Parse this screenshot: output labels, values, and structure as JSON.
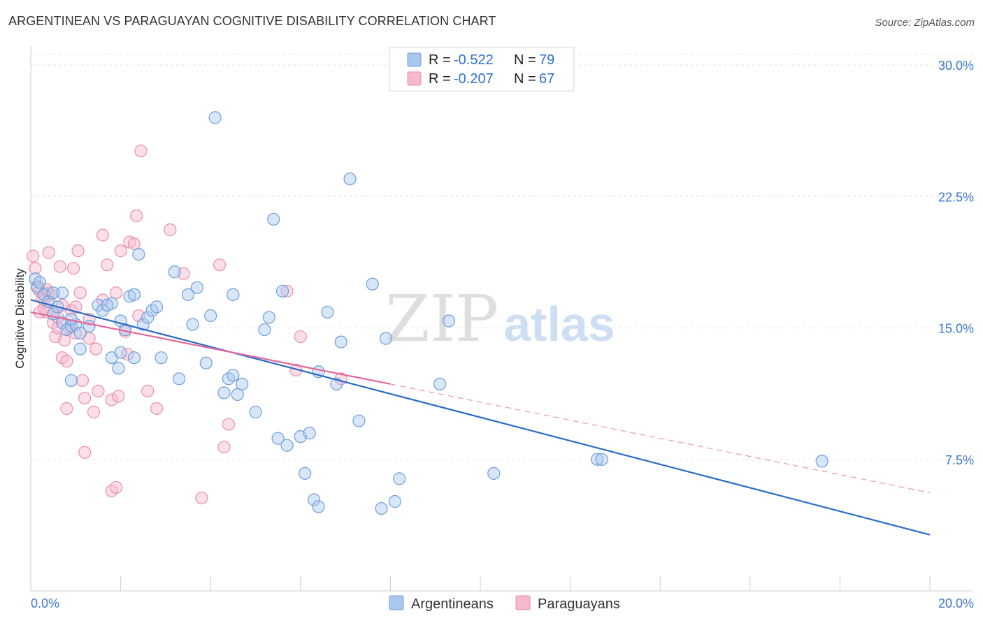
{
  "title": "ARGENTINEAN VS PARAGUAYAN COGNITIVE DISABILITY CORRELATION CHART",
  "source": "Source: ZipAtlas.com",
  "watermark": {
    "zip": "ZIP",
    "atlas": "atlas"
  },
  "colors": {
    "blue_fill": "#a9c8f0",
    "blue_stroke": "#6d9fd8",
    "blue_line": "#2a6cc8",
    "pink_fill": "#f6b9cc",
    "pink_stroke": "#e98fae",
    "pink_line": "#e4679a",
    "value_text": "#2f6fd0",
    "grid": "#e3e3e3"
  },
  "stats_legend": [
    {
      "series": "Argentineans",
      "r_label": "R =",
      "r_value": "-0.522",
      "n_label": "N =",
      "n_value": "79"
    },
    {
      "series": "Paraguayans",
      "r_label": "R =",
      "r_value": "-0.207",
      "n_label": "N =",
      "n_value": "67"
    }
  ],
  "chart_data": {
    "type": "scatter",
    "title": "ARGENTINEAN VS PARAGUAYAN COGNITIVE DISABILITY CORRELATION CHART",
    "xlabel": "",
    "ylabel": "Cognitive Disability",
    "xlim": [
      0,
      20
    ],
    "ylim": [
      0,
      30.6
    ],
    "x_tick_labels": [
      "0.0%",
      "20.0%"
    ],
    "y_ticks": [
      7.5,
      15.0,
      22.5,
      30.0
    ],
    "y_tick_labels": [
      "7.5%",
      "15.0%",
      "22.5%",
      "30.0%"
    ],
    "grid": "horizontal dashed",
    "legend_position": "bottom-center",
    "series": [
      {
        "name": "Argentineans",
        "color": "#a9c8f0",
        "trend": {
          "x": [
            0,
            20
          ],
          "y": [
            16.6,
            3.2
          ],
          "style": "solid"
        },
        "points": [
          [
            0.1,
            17.8
          ],
          [
            0.15,
            17.3
          ],
          [
            0.2,
            17.6
          ],
          [
            0.3,
            16.9
          ],
          [
            0.4,
            16.5
          ],
          [
            0.5,
            15.8
          ],
          [
            0.6,
            16.2
          ],
          [
            0.7,
            15.3
          ],
          [
            0.8,
            14.9
          ],
          [
            0.9,
            15.1
          ],
          [
            1.0,
            15.2
          ],
          [
            1.1,
            14.7
          ],
          [
            1.3,
            15.1
          ],
          [
            1.5,
            16.3
          ],
          [
            1.6,
            16.0
          ],
          [
            1.8,
            16.4
          ],
          [
            2.0,
            15.4
          ],
          [
            2.2,
            16.8
          ],
          [
            2.3,
            16.9
          ],
          [
            2.5,
            15.2
          ],
          [
            2.6,
            15.6
          ],
          [
            2.7,
            16.0
          ],
          [
            2.8,
            16.2
          ],
          [
            0.7,
            17.0
          ],
          [
            0.9,
            15.5
          ],
          [
            1.1,
            13.8
          ],
          [
            1.8,
            13.3
          ],
          [
            1.95,
            12.7
          ],
          [
            2.0,
            13.6
          ],
          [
            2.1,
            14.9
          ],
          [
            2.3,
            13.3
          ],
          [
            2.4,
            19.2
          ],
          [
            3.2,
            18.2
          ],
          [
            3.5,
            16.9
          ],
          [
            3.7,
            17.3
          ],
          [
            3.6,
            15.2
          ],
          [
            4.0,
            15.7
          ],
          [
            4.1,
            27.0
          ],
          [
            4.3,
            11.3
          ],
          [
            4.4,
            12.1
          ],
          [
            4.5,
            12.3
          ],
          [
            4.5,
            16.9
          ],
          [
            4.6,
            11.2
          ],
          [
            4.7,
            11.8
          ],
          [
            5.0,
            10.2
          ],
          [
            5.2,
            14.9
          ],
          [
            5.3,
            15.6
          ],
          [
            5.4,
            21.2
          ],
          [
            5.5,
            8.7
          ],
          [
            5.6,
            17.1
          ],
          [
            5.7,
            8.3
          ],
          [
            6.0,
            8.8
          ],
          [
            6.2,
            9.0
          ],
          [
            6.1,
            6.7
          ],
          [
            6.3,
            5.2
          ],
          [
            6.4,
            12.5
          ],
          [
            6.4,
            4.8
          ],
          [
            6.6,
            15.9
          ],
          [
            6.8,
            11.8
          ],
          [
            6.9,
            14.2
          ],
          [
            7.1,
            23.5
          ],
          [
            7.3,
            9.7
          ],
          [
            7.6,
            17.5
          ],
          [
            7.8,
            4.7
          ],
          [
            7.9,
            14.4
          ],
          [
            8.1,
            5.1
          ],
          [
            8.2,
            6.4
          ],
          [
            9.1,
            11.8
          ],
          [
            9.3,
            15.4
          ],
          [
            10.3,
            6.7
          ],
          [
            12.6,
            7.5
          ],
          [
            12.7,
            7.5
          ],
          [
            17.6,
            7.4
          ],
          [
            3.3,
            12.1
          ],
          [
            3.9,
            13.0
          ],
          [
            2.9,
            13.3
          ],
          [
            1.7,
            16.3
          ],
          [
            0.9,
            12.0
          ],
          [
            0.5,
            17.0
          ]
        ]
      },
      {
        "name": "Paraguayans",
        "color": "#f6b9cc",
        "trend": {
          "x": [
            0,
            8
          ],
          "y": [
            15.9,
            11.8
          ],
          "style": "solid",
          "extended": {
            "x": [
              8,
              20
            ],
            "y": [
              11.8,
              5.6
            ],
            "style": "dashed"
          }
        },
        "points": [
          [
            0.05,
            19.1
          ],
          [
            0.1,
            18.4
          ],
          [
            0.2,
            17.1
          ],
          [
            0.3,
            16.6
          ],
          [
            0.35,
            15.9
          ],
          [
            0.4,
            17.0
          ],
          [
            0.5,
            15.3
          ],
          [
            0.55,
            14.5
          ],
          [
            0.6,
            15.0
          ],
          [
            0.65,
            18.5
          ],
          [
            0.7,
            13.3
          ],
          [
            0.75,
            14.3
          ],
          [
            0.8,
            13.1
          ],
          [
            0.85,
            15.0
          ],
          [
            0.9,
            16.0
          ],
          [
            0.95,
            18.4
          ],
          [
            1.0,
            16.2
          ],
          [
            1.05,
            19.4
          ],
          [
            1.1,
            17.0
          ],
          [
            1.15,
            12.0
          ],
          [
            1.2,
            11.0
          ],
          [
            1.3,
            14.4
          ],
          [
            1.4,
            10.2
          ],
          [
            1.5,
            11.4
          ],
          [
            1.6,
            16.6
          ],
          [
            1.7,
            18.6
          ],
          [
            1.8,
            10.9
          ],
          [
            1.9,
            17.0
          ],
          [
            1.95,
            11.1
          ],
          [
            2.0,
            19.4
          ],
          [
            2.1,
            14.8
          ],
          [
            2.15,
            13.5
          ],
          [
            2.2,
            19.9
          ],
          [
            2.3,
            19.8
          ],
          [
            2.35,
            21.4
          ],
          [
            2.4,
            15.7
          ],
          [
            2.45,
            25.1
          ],
          [
            2.6,
            11.4
          ],
          [
            2.8,
            10.4
          ],
          [
            3.1,
            20.6
          ],
          [
            3.4,
            18.1
          ],
          [
            3.8,
            5.3
          ],
          [
            4.2,
            18.6
          ],
          [
            4.3,
            8.2
          ],
          [
            4.4,
            9.5
          ],
          [
            5.7,
            17.1
          ],
          [
            5.9,
            12.6
          ],
          [
            6.0,
            14.5
          ],
          [
            6.9,
            12.1
          ],
          [
            1.2,
            7.9
          ],
          [
            1.8,
            5.7
          ],
          [
            1.9,
            5.9
          ],
          [
            0.8,
            10.4
          ],
          [
            0.6,
            15.6
          ],
          [
            1.3,
            15.5
          ],
          [
            0.4,
            19.3
          ],
          [
            1.6,
            20.3
          ],
          [
            0.2,
            15.9
          ],
          [
            0.3,
            16.1
          ],
          [
            0.45,
            16.9
          ],
          [
            0.7,
            16.3
          ],
          [
            0.15,
            17.4
          ],
          [
            1.0,
            14.7
          ],
          [
            1.45,
            13.8
          ],
          [
            0.25,
            16.7
          ],
          [
            0.5,
            15.8
          ],
          [
            0.35,
            17.2
          ]
        ]
      }
    ]
  },
  "bottom_legend": [
    {
      "label": "Argentineans"
    },
    {
      "label": "Paraguayans"
    }
  ]
}
